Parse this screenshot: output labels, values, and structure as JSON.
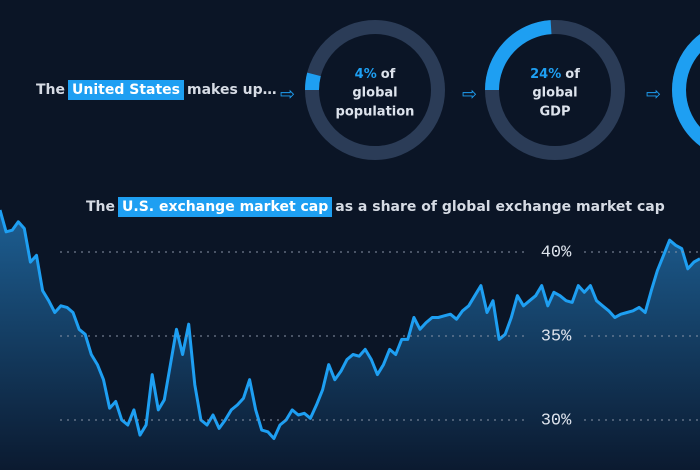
{
  "header": {
    "before": "The",
    "highlight": "United States",
    "after": "makes up…"
  },
  "chart_data": [
    {
      "type": "donut",
      "values": [
        4
      ],
      "value_labels": [
        "4%"
      ],
      "caption": [
        "of",
        "global",
        "population"
      ],
      "color": "#1e9ff2"
    },
    {
      "type": "donut",
      "values": [
        24
      ],
      "value_labels": [
        "24%"
      ],
      "caption": [
        "of",
        "global",
        "GDP"
      ],
      "color": "#1e9ff2"
    },
    {
      "type": "area",
      "title_parts": [
        "The",
        "U.S. exchange market cap",
        "as a share of global exchange market cap"
      ],
      "values": [
        42.5,
        41.2,
        41.3,
        41.8,
        41.4,
        39.4,
        39.8,
        37.7,
        37.1,
        36.4,
        36.8,
        36.7,
        36.4,
        35.4,
        35.1,
        33.9,
        33.3,
        32.4,
        30.7,
        31.1,
        30.0,
        29.7,
        30.6,
        29.1,
        29.7,
        32.7,
        30.6,
        31.2,
        33.3,
        35.4,
        33.9,
        35.7,
        32.1,
        30.0,
        29.7,
        30.3,
        29.5,
        30.0,
        30.6,
        30.9,
        31.3,
        32.4,
        30.6,
        29.4,
        29.3,
        28.9,
        29.7,
        30.0,
        30.6,
        30.3,
        30.4,
        30.1,
        30.9,
        31.8,
        33.3,
        32.4,
        32.9,
        33.6,
        33.9,
        33.8,
        34.2,
        33.6,
        32.7,
        33.3,
        34.2,
        33.9,
        34.8,
        34.8,
        36.1,
        35.4,
        35.8,
        36.1,
        36.1,
        36.2,
        36.3,
        36.0,
        36.5,
        36.8,
        37.4,
        38.0,
        36.4,
        37.1,
        34.8,
        35.1,
        36.1,
        37.4,
        36.8,
        37.1,
        37.4,
        38.0,
        36.8,
        37.6,
        37.4,
        37.1,
        37.0,
        38.0,
        37.6,
        38.0,
        37.1,
        36.8,
        36.5,
        36.1,
        36.3,
        36.4,
        36.5,
        36.7,
        36.4,
        37.7,
        38.9,
        39.8,
        40.7,
        40.4,
        40.2,
        39.0,
        39.4,
        39.6
      ],
      "color": "#1e9ff2",
      "ylim": [
        27,
        43
      ],
      "yticks": [
        {
          "value": 30,
          "label": "30%"
        },
        {
          "value": 35,
          "label": "35%"
        },
        {
          "value": 40,
          "label": "40%"
        }
      ],
      "grid": true
    }
  ]
}
